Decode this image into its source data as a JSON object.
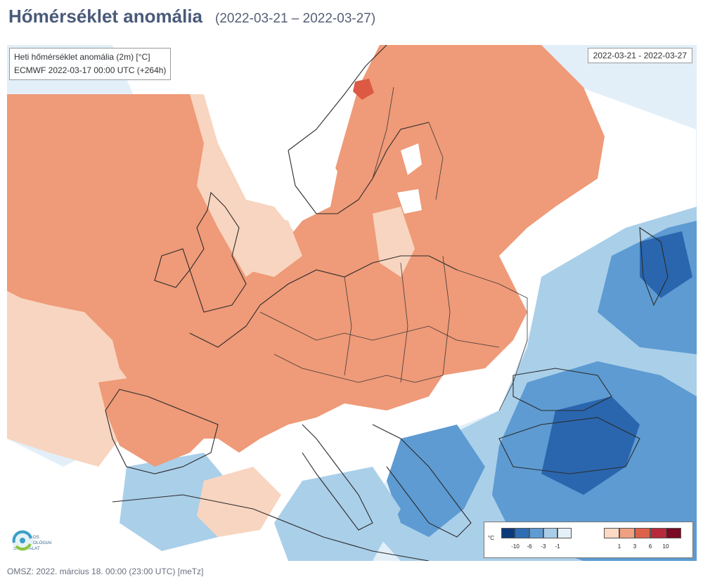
{
  "header": {
    "title": "Hőmérséklet anomália",
    "period": "(2022-03-21 – 2022-03-27)"
  },
  "map": {
    "info_line1": "Heti hőmérséklet anomália (2m) [°C]",
    "info_line2": "ECMWF 2022-03-17 00:00 UTC (+264h)",
    "date_range": "2022-03-21 - 2022-03-27"
  },
  "logo": {
    "lines": [
      "ORSZÁGOS",
      "METEOROLÓGIAI",
      "SZOLGÁLAT"
    ]
  },
  "legend": {
    "unit": "°C",
    "negative_labels": [
      "-10",
      "-6",
      "-3",
      "-1"
    ],
    "positive_labels": [
      "1",
      "3",
      "6",
      "10"
    ],
    "negative_colors": [
      "#0b3a7a",
      "#2e6db4",
      "#5d9bd2",
      "#a9cde8",
      "#e4f0f8"
    ],
    "positive_colors": [
      "#fbd9c4",
      "#f0a07f",
      "#dd6148",
      "#b8283b",
      "#7a0a24"
    ]
  },
  "colors": {
    "warm_light": "#f8d5c0",
    "warm": "#ef9a78",
    "warm_strong": "#dc5a44",
    "cool_pale": "#e3eff8",
    "cool_light": "#aacfe9",
    "cool": "#5d9bd2",
    "cool_dark": "#2a66ae"
  },
  "footer": {
    "text": "OMSZ: 2022. március 18. 00:00 (23:00  UTC)  [meTz]"
  }
}
